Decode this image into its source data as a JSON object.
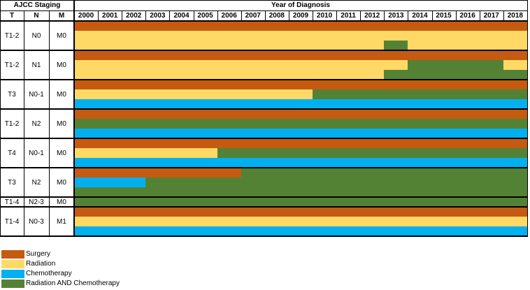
{
  "header": {
    "staging_title": "AJCC Staging",
    "year_title": "Year of Diagnosis",
    "col_t": "T",
    "col_n": "N",
    "col_m": "M"
  },
  "years": [
    "2000",
    "2001",
    "2002",
    "2003",
    "2004",
    "2005",
    "2006",
    "2007",
    "2008",
    "2009",
    "2010",
    "2011",
    "2012",
    "2013",
    "2014",
    "2015",
    "2016",
    "2017",
    "2018"
  ],
  "colors": {
    "surgery": "#c55a11",
    "radiation": "#ffd966",
    "chemotherapy": "#00b0f0",
    "radchemo": "#548235"
  },
  "groups": [
    {
      "t": "T1-2",
      "n": "N0",
      "m": "M0",
      "tracks": [
        [
          {
            "from": 2000,
            "to": 2018,
            "c": "surgery"
          }
        ],
        [
          {
            "from": 2000,
            "to": 2018,
            "c": "radiation"
          }
        ],
        [
          {
            "from": 2000,
            "to": 2012,
            "c": "radiation"
          },
          {
            "from": 2013,
            "to": 2013,
            "c": "radchemo"
          },
          {
            "from": 2014,
            "to": 2018,
            "c": "radiation"
          }
        ]
      ]
    },
    {
      "t": "T1-2",
      "n": "N1",
      "m": "M0",
      "tracks": [
        [
          {
            "from": 2000,
            "to": 2018,
            "c": "surgery"
          }
        ],
        [
          {
            "from": 2000,
            "to": 2013,
            "c": "radiation"
          },
          {
            "from": 2014,
            "to": 2017,
            "c": "radchemo"
          },
          {
            "from": 2018,
            "to": 2018,
            "c": "radiation"
          }
        ],
        [
          {
            "from": 2000,
            "to": 2012,
            "c": "radiation"
          },
          {
            "from": 2013,
            "to": 2018,
            "c": "radchemo"
          }
        ]
      ]
    },
    {
      "t": "T3",
      "n": "N0-1",
      "m": "M0",
      "tracks": [
        [
          {
            "from": 2000,
            "to": 2018,
            "c": "surgery"
          }
        ],
        [
          {
            "from": 2000,
            "to": 2009,
            "c": "radiation"
          },
          {
            "from": 2010,
            "to": 2018,
            "c": "radchemo"
          }
        ],
        [
          {
            "from": 2000,
            "to": 2018,
            "c": "chemotherapy"
          }
        ]
      ]
    },
    {
      "t": "T1-2",
      "n": "N2",
      "m": "M0",
      "tracks": [
        [
          {
            "from": 2000,
            "to": 2018,
            "c": "surgery"
          }
        ],
        [
          {
            "from": 2000,
            "to": 2018,
            "c": "radchemo"
          }
        ],
        [
          {
            "from": 2000,
            "to": 2018,
            "c": "chemotherapy"
          }
        ]
      ]
    },
    {
      "t": "T4",
      "n": "N0-1",
      "m": "M0",
      "tracks": [
        [
          {
            "from": 2000,
            "to": 2018,
            "c": "surgery"
          }
        ],
        [
          {
            "from": 2000,
            "to": 2005,
            "c": "radiation"
          },
          {
            "from": 2006,
            "to": 2018,
            "c": "radchemo"
          }
        ],
        [
          {
            "from": 2000,
            "to": 2018,
            "c": "chemotherapy"
          }
        ]
      ]
    },
    {
      "t": "T3",
      "n": "N2",
      "m": "M0",
      "tracks": [
        [
          {
            "from": 2000,
            "to": 2006,
            "c": "surgery"
          },
          {
            "from": 2007,
            "to": 2018,
            "c": "radchemo"
          }
        ],
        [
          {
            "from": 2000,
            "to": 2002,
            "c": "chemotherapy"
          },
          {
            "from": 2003,
            "to": 2018,
            "c": "radchemo"
          }
        ],
        [
          {
            "from": 2000,
            "to": 2018,
            "c": "radchemo"
          }
        ]
      ]
    },
    {
      "t": "T1-4",
      "n": "N2-3",
      "m": "M0",
      "tracks": [
        [
          {
            "from": 2000,
            "to": 2018,
            "c": "radchemo"
          }
        ]
      ]
    },
    {
      "t": "T1-4",
      "n": "N0-3",
      "m": "M1",
      "tracks": [
        [
          {
            "from": 2000,
            "to": 2018,
            "c": "surgery"
          }
        ],
        [
          {
            "from": 2000,
            "to": 2018,
            "c": "radiation"
          }
        ],
        [
          {
            "from": 2000,
            "to": 2018,
            "c": "chemotherapy"
          }
        ]
      ]
    }
  ],
  "legend": [
    {
      "label": "Surgery",
      "c": "surgery"
    },
    {
      "label": "Radiation",
      "c": "radiation"
    },
    {
      "label": "Chemotherapy",
      "c": "chemotherapy"
    },
    {
      "label": "Radiation AND Chemotherapy",
      "c": "radchemo"
    }
  ]
}
